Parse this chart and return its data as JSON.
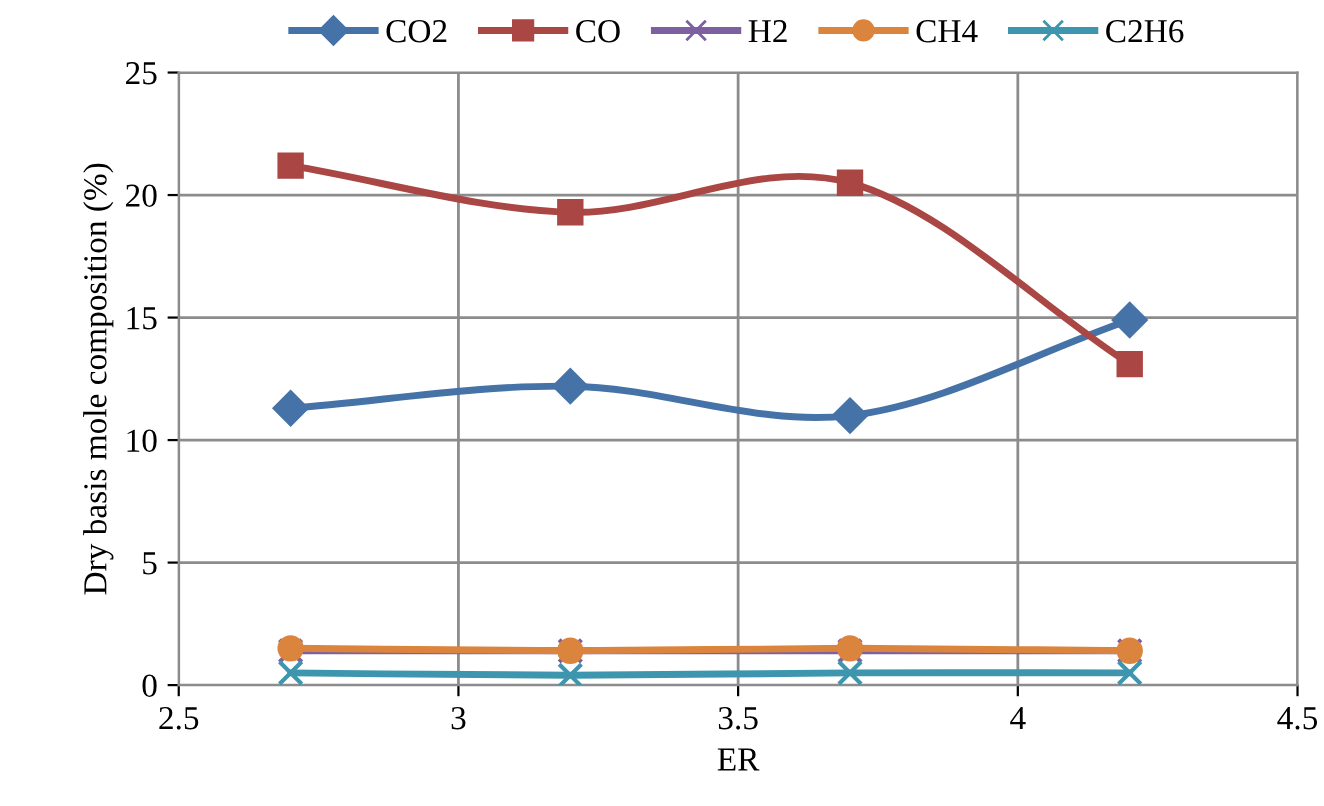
{
  "chart_data": {
    "type": "line",
    "xlabel": "ER",
    "ylabel": "Dry basis mole composition (%)",
    "x": [
      2.7,
      3.2,
      3.7,
      4.2
    ],
    "series": [
      {
        "name": "CO2",
        "color": "#4572a7",
        "marker": "diamond",
        "values": [
          11.3,
          12.2,
          11.0,
          14.9
        ]
      },
      {
        "name": "CO",
        "color": "#aa4643",
        "marker": "square",
        "values": [
          21.2,
          19.3,
          20.5,
          13.1
        ]
      },
      {
        "name": "H2",
        "color": "#7d60a0",
        "marker": "cross",
        "values": [
          1.4,
          1.4,
          1.4,
          1.4
        ]
      },
      {
        "name": "CH4",
        "color": "#db843d",
        "marker": "circle",
        "values": [
          1.5,
          1.4,
          1.5,
          1.4
        ]
      },
      {
        "name": "C2H6",
        "color": "#3d96ae",
        "marker": "cross",
        "values": [
          0.5,
          0.4,
          0.5,
          0.5
        ]
      }
    ],
    "xlim": [
      2.5,
      4.5
    ],
    "xticks": [
      2.5,
      3,
      3.5,
      4,
      4.5
    ],
    "ylim": [
      0,
      25
    ],
    "yticks": [
      0,
      5,
      10,
      15,
      20,
      25
    ],
    "grid": true,
    "legend": "top"
  }
}
